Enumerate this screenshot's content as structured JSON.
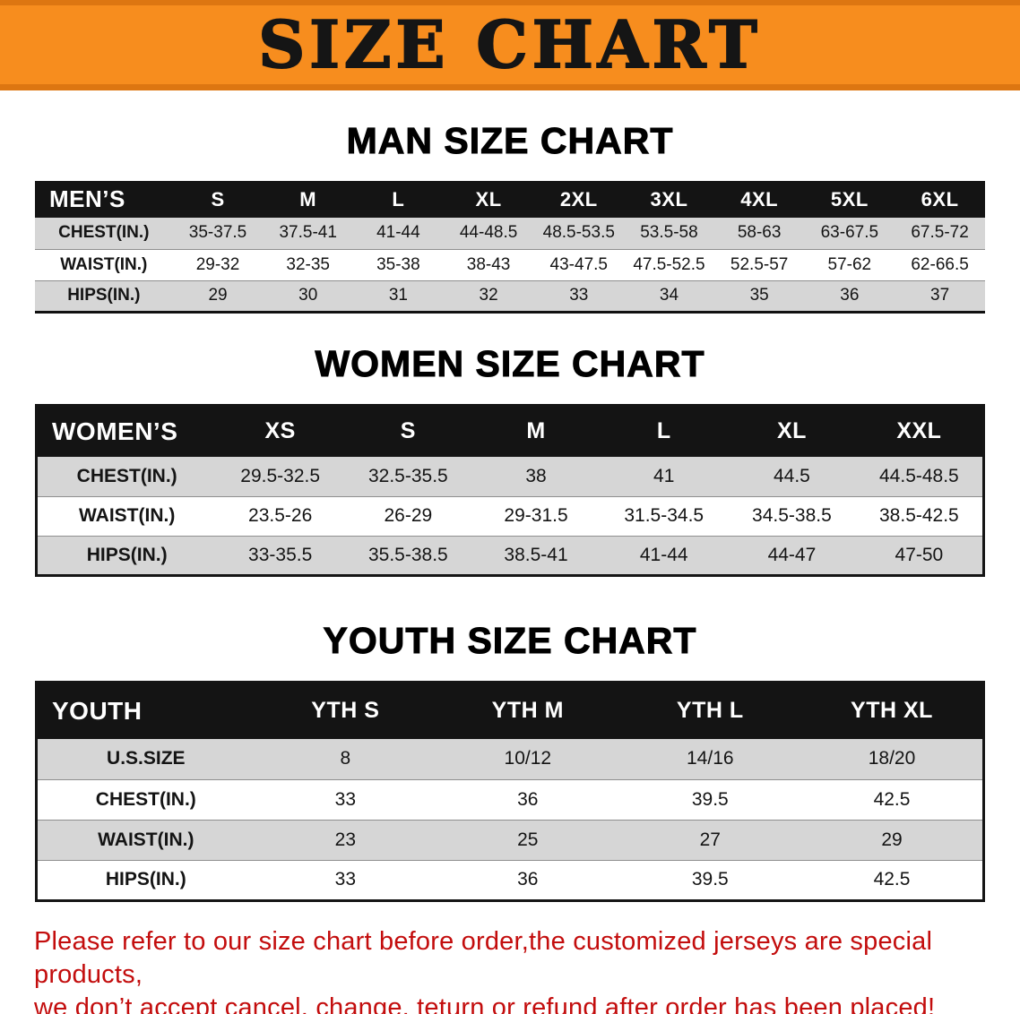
{
  "banner": {
    "title": "SIZE CHART"
  },
  "men": {
    "heading": "MAN SIZE CHART",
    "corner": "MEN’S",
    "sizes": [
      "S",
      "M",
      "L",
      "XL",
      "2XL",
      "3XL",
      "4XL",
      "5XL",
      "6XL"
    ],
    "rows": [
      {
        "label": "CHEST(IN.)",
        "values": [
          "35-37.5",
          "37.5-41",
          "41-44",
          "44-48.5",
          "48.5-53.5",
          "53.5-58",
          "58-63",
          "63-67.5",
          "67.5-72"
        ]
      },
      {
        "label": "WAIST(IN.)",
        "values": [
          "29-32",
          "32-35",
          "35-38",
          "38-43",
          "43-47.5",
          "47.5-52.5",
          "52.5-57",
          "57-62",
          "62-66.5"
        ]
      },
      {
        "label": "HIPS(IN.)",
        "values": [
          "29",
          "30",
          "31",
          "32",
          "33",
          "34",
          "35",
          "36",
          "37"
        ]
      }
    ]
  },
  "women": {
    "heading": "WOMEN SIZE CHART",
    "corner": "WOMEN’S",
    "sizes": [
      "XS",
      "S",
      "M",
      "L",
      "XL",
      "XXL"
    ],
    "rows": [
      {
        "label": "CHEST(IN.)",
        "values": [
          "29.5-32.5",
          "32.5-35.5",
          "38",
          "41",
          "44.5",
          "44.5-48.5"
        ]
      },
      {
        "label": "WAIST(IN.)",
        "values": [
          "23.5-26",
          "26-29",
          "29-31.5",
          "31.5-34.5",
          "34.5-38.5",
          "38.5-42.5"
        ]
      },
      {
        "label": "HIPS(IN.)",
        "values": [
          "33-35.5",
          "35.5-38.5",
          "38.5-41",
          "41-44",
          "44-47",
          "47-50"
        ]
      }
    ]
  },
  "youth": {
    "heading": "YOUTH SIZE CHART",
    "corner": "YOUTH",
    "sizes": [
      "YTH S",
      "YTH M",
      "YTH L",
      "YTH XL"
    ],
    "rows": [
      {
        "label": "U.S.SIZE",
        "values": [
          "8",
          "10/12",
          "14/16",
          "18/20"
        ]
      },
      {
        "label": "CHEST(IN.)",
        "values": [
          "33",
          "36",
          "39.5",
          "42.5"
        ]
      },
      {
        "label": "WAIST(IN.)",
        "values": [
          "23",
          "25",
          "27",
          "29"
        ]
      },
      {
        "label": "HIPS(IN.)",
        "values": [
          "33",
          "36",
          "39.5",
          "42.5"
        ]
      }
    ]
  },
  "footer": {
    "line1": "Please refer to our size chart before order,the customized jerseys are special products,",
    "line2": "we don’t accept cancel, change, teturn or refund after order has been placed!"
  },
  "colors": {
    "banner_bg": "#f78d1e",
    "banner_edge": "#dd7611",
    "table_header_bg": "#141414",
    "row_stripe_bg": "#d6d6d6",
    "footer_text": "#c30d0d"
  }
}
